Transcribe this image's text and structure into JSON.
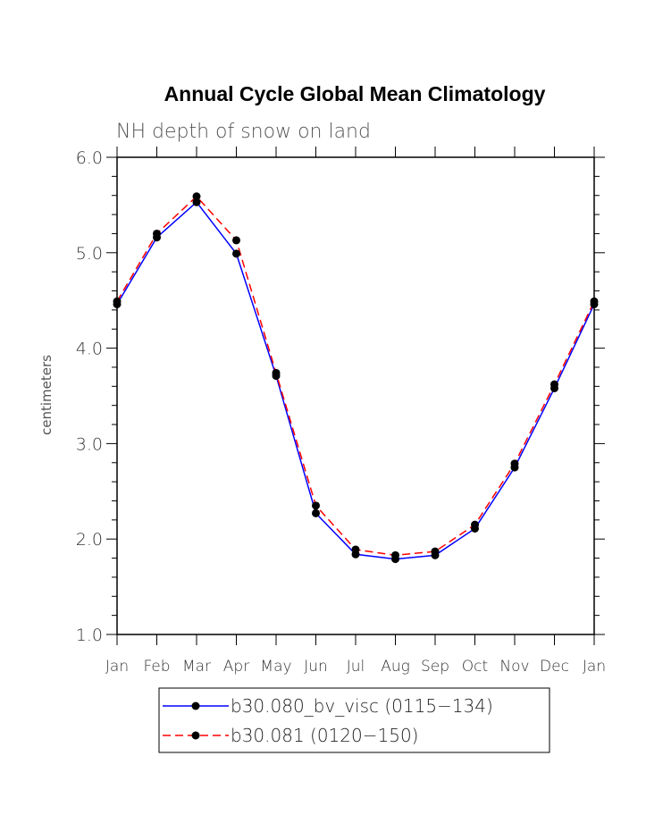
{
  "chart_data": {
    "type": "line",
    "title": "Annual Cycle Global Mean Climatology",
    "subtitle": "NH depth of snow on land",
    "xlabel": "",
    "ylabel": "centimeters",
    "ylim": [
      1.0,
      6.0
    ],
    "yticks": [
      "1.0",
      "2.0",
      "3.0",
      "4.0",
      "5.0",
      "6.0"
    ],
    "yticks_values": [
      1.0,
      2.0,
      3.0,
      4.0,
      5.0,
      6.0
    ],
    "categories": [
      "Jan",
      "Feb",
      "Mar",
      "Apr",
      "May",
      "Jun",
      "Jul",
      "Aug",
      "Sep",
      "Oct",
      "Nov",
      "Dec",
      "Jan"
    ],
    "grid": false,
    "legend_position": "bottom",
    "series": [
      {
        "name": "b30.080_bv_visc (0115−134)",
        "color": "#0000ff",
        "style": "solid",
        "values": [
          4.46,
          5.16,
          5.53,
          4.99,
          3.71,
          2.27,
          1.84,
          1.79,
          1.83,
          2.11,
          2.75,
          3.58,
          4.46
        ]
      },
      {
        "name": "b30.081 (0120−150)",
        "color": "#ff0000",
        "style": "dashed",
        "values": [
          4.49,
          5.2,
          5.59,
          5.13,
          3.74,
          2.35,
          1.89,
          1.83,
          1.87,
          2.15,
          2.79,
          3.62,
          4.49
        ]
      }
    ]
  }
}
